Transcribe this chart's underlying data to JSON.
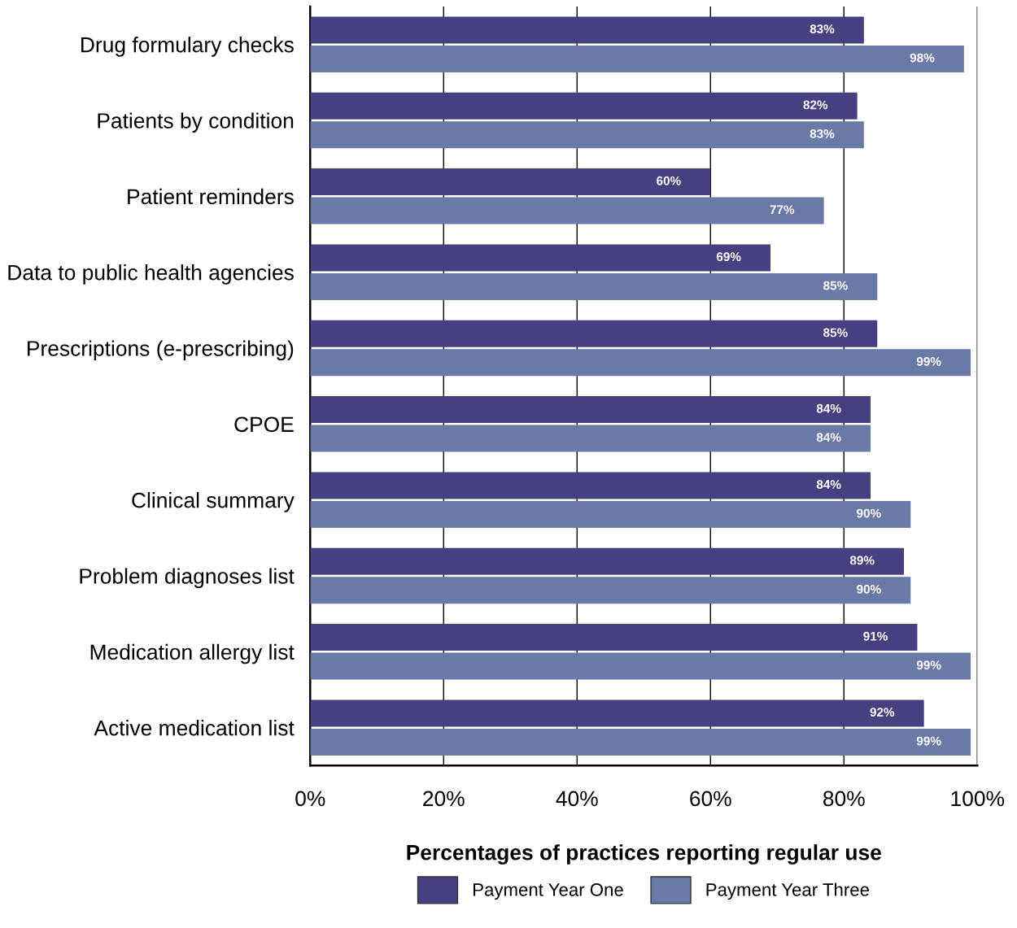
{
  "chart_data": {
    "type": "bar",
    "orientation": "horizontal",
    "xlabel": "Percentages of practices reporting regular use",
    "categories": [
      "Drug formulary checks",
      "Patients by condition",
      "Patient reminders",
      "Data to public health agencies",
      "Prescriptions (e-prescribing)",
      "CPOE",
      "Clinical summary",
      "Problem diagnoses list",
      "Medication allergy list",
      "Active medication list"
    ],
    "series": [
      {
        "name": "Payment Year One",
        "color": "#463f80",
        "values": [
          83,
          82,
          60,
          69,
          85,
          84,
          84,
          89,
          91,
          92
        ],
        "value_labels": [
          "83%",
          "82%",
          "60%",
          "69%",
          "85%",
          "84%",
          "84%",
          "89%",
          "91%",
          "92%"
        ]
      },
      {
        "name": "Payment Year Three",
        "color": "#6b79a6",
        "values": [
          98,
          83,
          77,
          85,
          99,
          84,
          90,
          90,
          99,
          99
        ],
        "value_labels": [
          "98%",
          "83%",
          "77%",
          "85%",
          "99%",
          "84%",
          "90%",
          "90%",
          "99%",
          "99%"
        ]
      }
    ],
    "xlim": [
      0,
      100
    ],
    "xticks": [
      {
        "value": 0,
        "label": "0%"
      },
      {
        "value": 20,
        "label": "20%"
      },
      {
        "value": 40,
        "label": "40%"
      },
      {
        "value": 60,
        "label": "60%"
      },
      {
        "value": 80,
        "label": "80%"
      },
      {
        "value": 100,
        "label": "100%"
      }
    ],
    "grid": "x",
    "legend": "bottom"
  }
}
